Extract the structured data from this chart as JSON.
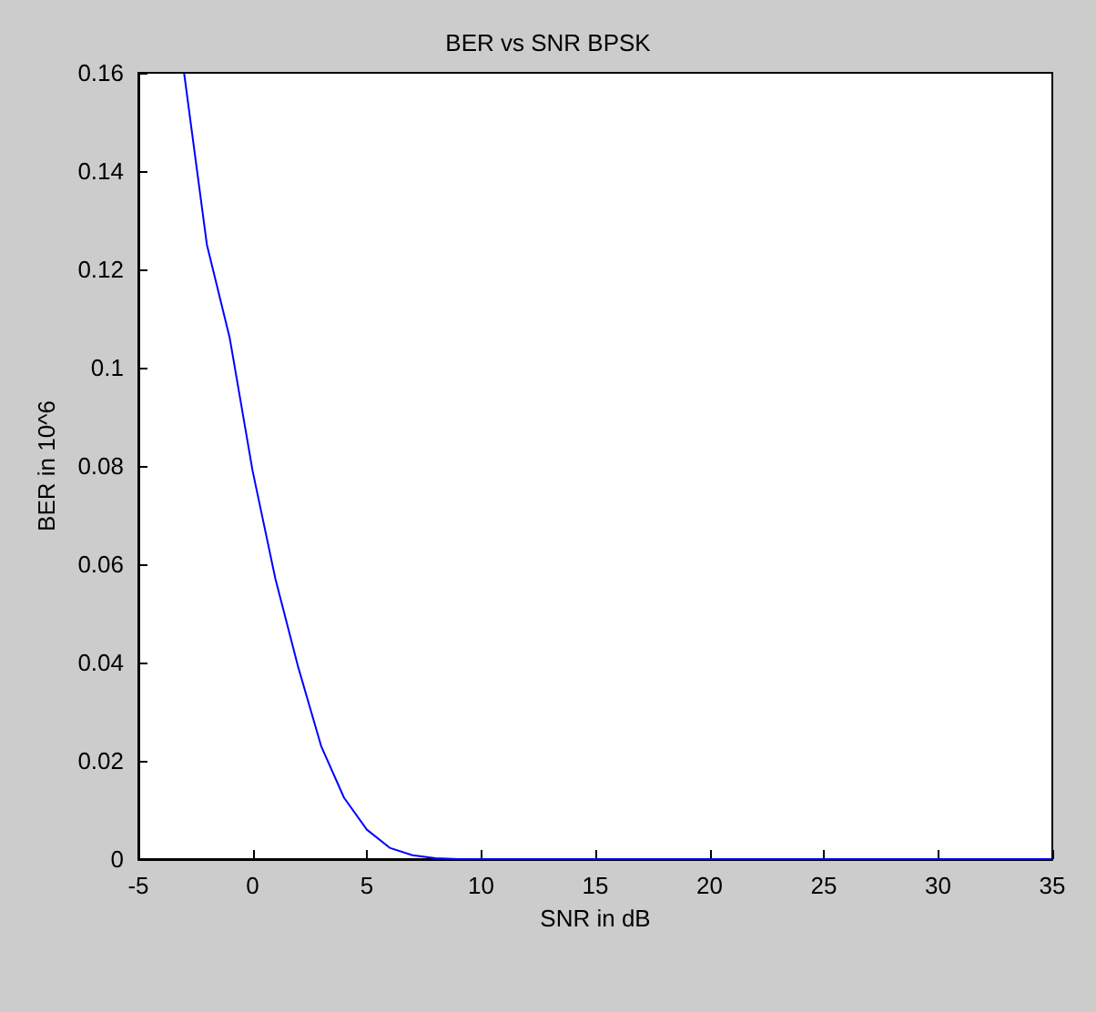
{
  "chart_data": {
    "type": "line",
    "title": "BER vs SNR BPSK",
    "xlabel": "SNR in dB",
    "ylabel": "BER in 10^6",
    "x": [
      -3,
      -2,
      -1,
      0,
      1,
      2,
      3,
      4,
      5,
      6,
      7,
      8,
      9,
      10,
      15,
      20,
      25,
      30,
      35
    ],
    "series": [
      {
        "color": "#0000ff",
        "values": [
          0.16,
          0.125,
          0.106,
          0.079,
          0.057,
          0.039,
          0.023,
          0.0125,
          0.006,
          0.0023,
          0.0008,
          0.0002,
          0,
          0,
          0,
          0,
          0,
          0,
          0
        ]
      }
    ],
    "xlim": [
      -5,
      35
    ],
    "xticks": [
      -5,
      0,
      5,
      10,
      15,
      20,
      25,
      30,
      35
    ],
    "ylim": [
      0,
      0.16
    ],
    "yticks": [
      0,
      0.02,
      0.04,
      0.06,
      0.08,
      0.1,
      0.12,
      0.14,
      0.16
    ],
    "grid": false,
    "marker": "none",
    "line_style": "solid"
  }
}
